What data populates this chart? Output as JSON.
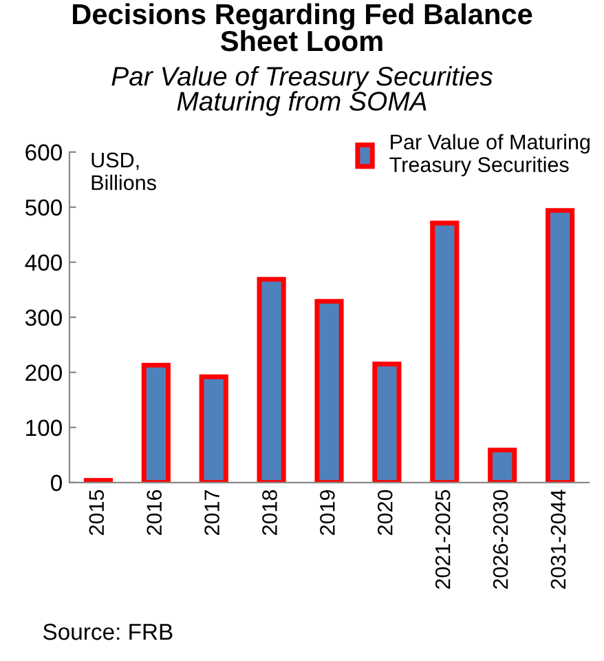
{
  "chart_data": {
    "type": "bar",
    "title": "Decisions Regarding Fed Balance\nSheet Loom",
    "subtitle": "Par Value of Treasury Securities\nMaturing from SOMA",
    "categories": [
      "2015",
      "2016",
      "2017",
      "2018",
      "2019",
      "2020",
      "2021-2025",
      "2026-2030",
      "2031-2044"
    ],
    "series": [
      {
        "name": "Par Value of Maturing\nTreasury Securities",
        "color": "#4f81bd",
        "values": [
          4,
          213,
          192,
          369,
          329,
          215,
          471,
          59,
          494
        ]
      }
    ],
    "ylim": [
      0,
      600
    ],
    "yticks": [
      0,
      100,
      200,
      300,
      400,
      500,
      600
    ],
    "grid": false,
    "legend": "top right",
    "annotations": [
      "USD,\nBillions",
      "Source: FRB"
    ]
  }
}
